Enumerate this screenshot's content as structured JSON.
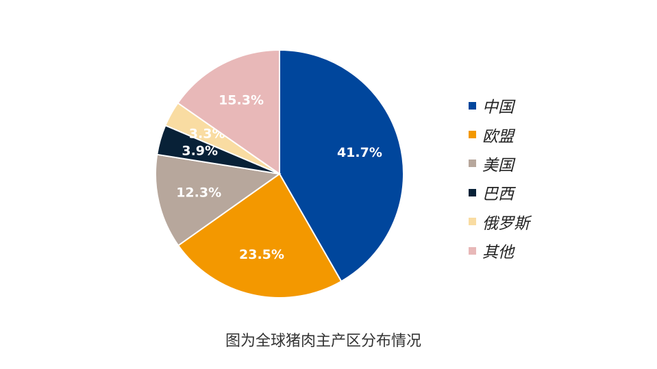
{
  "chart_data": {
    "type": "pie",
    "categories": [
      "中国",
      "欧盟",
      "美国",
      "巴西",
      "俄罗斯",
      "其他"
    ],
    "values": [
      41.7,
      23.5,
      12.3,
      3.9,
      3.3,
      15.3
    ],
    "labels": [
      "41.7%",
      "23.5%",
      "12.3%",
      "3.9%",
      "3.3%",
      "15.3%"
    ],
    "colors": [
      "#00469C",
      "#F39800",
      "#B7A79C",
      "#082137",
      "#F9DCA2",
      "#E8B8B8"
    ],
    "legend": "right"
  },
  "caption": "图为全球猪肉主产区分布情况"
}
